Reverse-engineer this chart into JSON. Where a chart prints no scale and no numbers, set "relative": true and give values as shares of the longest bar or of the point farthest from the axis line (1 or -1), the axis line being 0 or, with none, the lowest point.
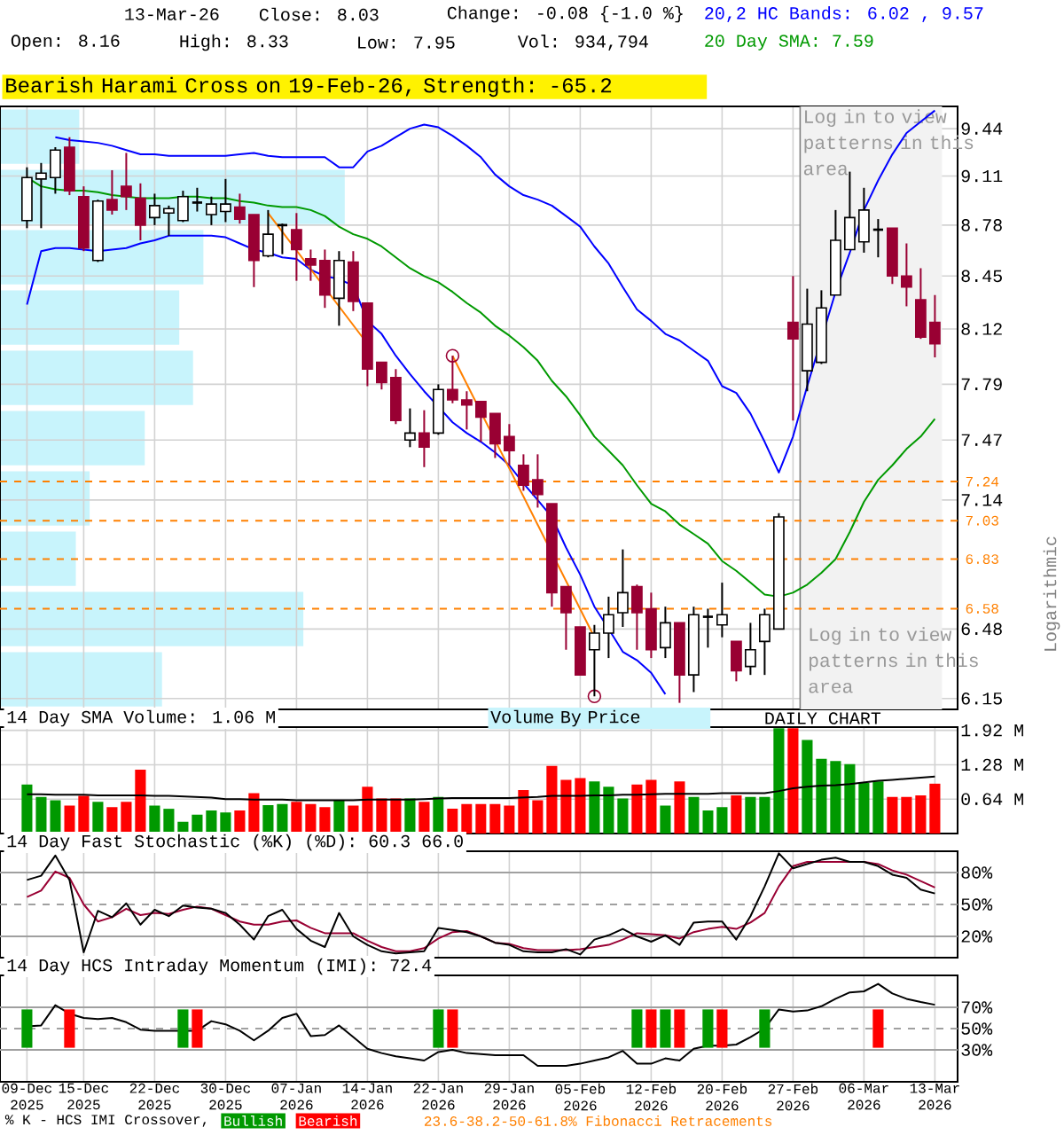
{
  "chart_data": [
    {
      "type": "bar",
      "orientation": "horizontal",
      "relative": true,
      "tick_labels": false,
      "color": "#c8f4fc",
      "categories": [
        null,
        null,
        null,
        null,
        null,
        null,
        null,
        null,
        null,
        null
      ],
      "values": [
        0.23,
        1,
        0.59,
        0.52,
        0.56,
        0.42,
        0.26,
        0.22,
        0.88,
        0.47
      ]
    },
    {
      "type": "candlestick",
      "categories": [
        "09-Dec 2025",
        null,
        null,
        null,
        "15-Dec 2025",
        null,
        null,
        null,
        null,
        "22-Dec 2025",
        null,
        null,
        null,
        null,
        "30-Dec 2025",
        null,
        null,
        null,
        null,
        "07-Jan 2026",
        null,
        null,
        null,
        null,
        "14-Jan 2026",
        null,
        null,
        null,
        null,
        "22-Jan 2026",
        null,
        null,
        null,
        null,
        "29-Jan 2026",
        null,
        null,
        null,
        null,
        "05-Feb 2026",
        null,
        null,
        null,
        null,
        "12-Feb 2026",
        null,
        null,
        null,
        null,
        "20-Feb 2026",
        null,
        null,
        null,
        null,
        "27-Feb 2026",
        null,
        null,
        null,
        null,
        "06-Mar 2026",
        null,
        null,
        null,
        null,
        "13-Mar 2026"
      ],
      "ohlc": [
        [
          8.81,
          9.17,
          8.76,
          9.1
        ],
        [
          9.09,
          9.2,
          8.76,
          9.13
        ],
        [
          9.1,
          9.31,
          8.99,
          9.29
        ],
        [
          9.31,
          9.38,
          8.98,
          9.01
        ],
        [
          8.97,
          9.04,
          8.61,
          8.63
        ],
        [
          8.55,
          8.95,
          8.54,
          8.94
        ],
        [
          8.95,
          9.15,
          8.85,
          8.88
        ],
        [
          9.04,
          9.27,
          8.88,
          8.97
        ],
        [
          8.96,
          9.06,
          8.68,
          8.78
        ],
        [
          8.83,
          8.99,
          8.78,
          8.91
        ],
        [
          8.86,
          8.91,
          8.71,
          8.89
        ],
        [
          8.81,
          9.01,
          8.8,
          8.97
        ],
        [
          8.93,
          9.03,
          8.87,
          8.93
        ],
        [
          8.85,
          8.97,
          8.78,
          8.92
        ],
        [
          8.87,
          9.09,
          8.8,
          8.92
        ],
        [
          8.9,
          8.99,
          8.79,
          8.82
        ],
        [
          8.85,
          8.85,
          8.38,
          8.55
        ],
        [
          8.58,
          8.88,
          8.57,
          8.72
        ],
        [
          8.78,
          8.79,
          8.59,
          8.78
        ],
        [
          8.75,
          8.86,
          8.42,
          8.62
        ],
        [
          8.56,
          8.62,
          8.42,
          8.52
        ],
        [
          8.55,
          8.62,
          8.25,
          8.33
        ],
        [
          8.31,
          8.61,
          8.14,
          8.55
        ],
        [
          8.54,
          8.61,
          8.23,
          8.29
        ],
        [
          8.28,
          8.28,
          7.78,
          7.88
        ],
        [
          7.92,
          7.92,
          7.76,
          7.8
        ],
        [
          7.83,
          7.88,
          7.56,
          7.58
        ],
        [
          7.47,
          7.65,
          7.43,
          7.51
        ],
        [
          7.51,
          7.64,
          7.32,
          7.43
        ],
        [
          7.51,
          7.79,
          7.5,
          7.76
        ],
        [
          7.76,
          7.96,
          7.68,
          7.7
        ],
        [
          7.7,
          7.75,
          7.53,
          7.67
        ],
        [
          7.69,
          7.69,
          7.46,
          7.6
        ],
        [
          7.62,
          7.62,
          7.37,
          7.45
        ],
        [
          7.49,
          7.56,
          7.33,
          7.41
        ],
        [
          7.33,
          7.39,
          7.19,
          7.22
        ],
        [
          7.25,
          7.39,
          7.1,
          7.17
        ],
        [
          7.12,
          7.12,
          6.59,
          6.66
        ],
        [
          6.69,
          6.69,
          6.38,
          6.56
        ],
        [
          6.49,
          6.49,
          6.26,
          6.26
        ],
        [
          6.38,
          6.5,
          6.16,
          6.46
        ],
        [
          6.46,
          6.64,
          6.34,
          6.55
        ],
        [
          6.56,
          6.88,
          6.49,
          6.66
        ],
        [
          6.69,
          6.7,
          6.38,
          6.56
        ],
        [
          6.58,
          6.66,
          6.34,
          6.38
        ],
        [
          6.39,
          6.59,
          6.34,
          6.51
        ],
        [
          6.51,
          6.51,
          6.13,
          6.26
        ],
        [
          6.26,
          6.59,
          6.18,
          6.55
        ],
        [
          6.54,
          6.58,
          6.39,
          6.54
        ],
        [
          6.5,
          6.71,
          6.44,
          6.55
        ],
        [
          6.42,
          6.42,
          6.23,
          6.28
        ],
        [
          6.3,
          6.51,
          6.26,
          6.38
        ],
        [
          6.42,
          6.58,
          6.26,
          6.55
        ],
        [
          6.48,
          7.07,
          6.48,
          7.05
        ],
        [
          8.16,
          8.45,
          7.58,
          8.06
        ],
        [
          7.87,
          8.37,
          7.75,
          8.15
        ],
        [
          7.92,
          8.36,
          7.91,
          8.25
        ],
        [
          8.33,
          8.88,
          8.33,
          8.68
        ],
        [
          8.62,
          9.14,
          8.62,
          8.83
        ],
        [
          8.67,
          9.03,
          8.6,
          8.88
        ],
        [
          8.75,
          8.82,
          8.57,
          8.75
        ],
        [
          8.76,
          8.76,
          8.4,
          8.45
        ],
        [
          8.45,
          8.66,
          8.26,
          8.38
        ],
        [
          8.3,
          8.5,
          8.06,
          8.07
        ],
        [
          8.16,
          8.33,
          7.95,
          8.03
        ]
      ],
      "colors": [
        "#ffffff",
        "#ffffff",
        "#ffffff",
        "#990033",
        "#990033",
        "#ffffff",
        "#990033",
        "#990033",
        "#990033",
        "#ffffff",
        "#ffffff",
        "#ffffff",
        "#000000",
        "#ffffff",
        "#ffffff",
        "#990033",
        "#990033",
        "#ffffff",
        "#000000",
        "#990033",
        "#990033",
        "#990033",
        "#ffffff",
        "#990033",
        "#990033",
        "#990033",
        "#990033",
        "#ffffff",
        "#990033",
        "#ffffff",
        "#990033",
        "#990033",
        "#990033",
        "#990033",
        "#990033",
        "#990033",
        "#990033",
        "#990033",
        "#990033",
        "#990033",
        "#ffffff",
        "#ffffff",
        "#ffffff",
        "#990033",
        "#990033",
        "#ffffff",
        "#990033",
        "#ffffff",
        "#000000",
        "#ffffff",
        "#990033",
        "#ffffff",
        "#ffffff",
        "#ffffff",
        "#990033",
        "#ffffff",
        "#ffffff",
        "#ffffff",
        "#ffffff",
        "#ffffff",
        "#000000",
        "#990033",
        "#990033",
        "#990033",
        "#990033"
      ],
      "series": [
        {
          "type": "line",
          "name": "20,2 HC Bands: 6.02 , 9.57",
          "color": "#0000ff",
          "values": [
            null,
            null,
            9.38,
            9.36,
            9.35,
            9.34,
            9.32,
            9.29,
            9.26,
            9.26,
            9.25,
            9.25,
            9.25,
            9.25,
            9.25,
            9.26,
            9.27,
            9.25,
            9.24,
            9.24,
            9.24,
            9.24,
            9.17,
            9.17,
            9.28,
            9.32,
            9.38,
            9.44,
            9.47,
            9.45,
            9.39,
            9.32,
            9.24,
            9.12,
            9.04,
            8.98,
            8.95,
            8.91,
            8.84,
            8.77,
            8.64,
            8.53,
            8.38,
            8.24,
            8.17,
            8.09,
            8.05,
            7.99,
            7.93,
            7.78,
            7.74,
            7.62,
            7.46,
            7.29,
            7.49,
            7.78,
            null,
            8.35,
            8.6,
            8.88,
            9.08,
            9.26,
            9.41,
            9.49,
            9.57
          ]
        },
        {
          "type": "line",
          "color": "#0000ff",
          "values": [
            8.27,
            8.61,
            8.63,
            8.63,
            8.62,
            8.61,
            8.62,
            8.63,
            8.66,
            8.68,
            8.71,
            8.71,
            8.71,
            8.71,
            8.7,
            8.66,
            8.62,
            8.6,
            8.57,
            8.56,
            8.49,
            8.45,
            8.43,
            8.39,
            8.17,
            8.09,
            7.96,
            7.85,
            7.75,
            7.66,
            7.57,
            7.51,
            7.46,
            7.4,
            7.33,
            7.23,
            7.14,
            7.05,
            6.89,
            6.75,
            6.59,
            6.48,
            6.37,
            6.33,
            6.27,
            6.17,
            null,
            null,
            null,
            null,
            null,
            null,
            null,
            null,
            null,
            null,
            null,
            null,
            null,
            null,
            null,
            null,
            null,
            null,
            null
          ]
        },
        {
          "type": "line",
          "name": "20 Day SMA: 7.59",
          "color": "#009900",
          "values": [
            9.1,
            9.04,
            9.02,
            9.01,
            9.01,
            9.0,
            8.98,
            8.97,
            8.96,
            8.96,
            8.96,
            8.97,
            8.97,
            8.96,
            8.96,
            8.94,
            8.93,
            8.91,
            8.9,
            8.9,
            8.88,
            8.84,
            8.77,
            8.72,
            8.69,
            8.64,
            8.57,
            8.5,
            8.45,
            8.41,
            8.35,
            8.28,
            8.22,
            8.14,
            8.08,
            8.01,
            7.93,
            7.81,
            7.72,
            7.61,
            7.49,
            7.41,
            7.33,
            7.22,
            7.12,
            7.08,
            7.01,
            6.96,
            6.91,
            6.82,
            6.77,
            6.71,
            6.65,
            6.64,
            6.66,
            6.7,
            6.76,
            6.83,
            6.97,
            7.13,
            7.25,
            7.33,
            7.42,
            7.49,
            7.59
          ]
        },
        {
          "type": "line",
          "color": "#ff8000",
          "values": [
            null,
            null,
            null,
            null,
            null,
            null,
            null,
            null,
            null,
            null,
            null,
            null,
            null,
            null,
            null,
            null,
            null,
            8.86,
            null,
            null,
            null,
            null,
            null,
            null,
            8.03,
            null,
            null,
            null,
            null,
            null,
            null,
            null,
            null,
            null,
            null,
            null,
            null,
            null,
            null,
            null,
            null,
            null,
            null,
            null,
            null,
            null,
            null,
            null,
            null,
            null,
            null,
            null,
            null,
            null,
            null,
            null,
            null,
            null,
            null,
            null,
            null,
            null,
            null,
            null,
            null
          ]
        },
        {
          "type": "line",
          "color": "#ff8000",
          "values": [
            null,
            null,
            null,
            null,
            null,
            null,
            null,
            null,
            null,
            null,
            null,
            null,
            null,
            null,
            null,
            null,
            null,
            null,
            null,
            null,
            null,
            null,
            null,
            null,
            null,
            null,
            null,
            null,
            null,
            null,
            7.96,
            null,
            null,
            null,
            null,
            null,
            null,
            null,
            null,
            null,
            6.44,
            null,
            null,
            null,
            null,
            null,
            null,
            null,
            null,
            null,
            null,
            null,
            null,
            null,
            null,
            null,
            null,
            null,
            null,
            null,
            null,
            null,
            null,
            null,
            null
          ]
        },
        {
          "type": "scatter",
          "color": "#990033",
          "marker": "circle",
          "values": [
            null,
            null,
            null,
            null,
            null,
            null,
            null,
            null,
            null,
            null,
            null,
            null,
            null,
            null,
            null,
            null,
            null,
            null,
            null,
            null,
            null,
            null,
            null,
            null,
            null,
            null,
            null,
            null,
            null,
            null,
            7.96,
            null,
            null,
            null,
            null,
            null,
            null,
            null,
            null,
            null,
            6.16,
            null,
            null,
            null,
            null,
            null,
            null,
            null,
            null,
            null,
            null,
            null,
            null,
            null,
            null,
            null,
            null,
            null,
            null,
            null,
            null,
            null,
            null,
            null,
            null
          ]
        }
      ],
      "ylim": [
        6.1,
        9.6
      ],
      "yticks": [
        6.15,
        6.48,
        7.14,
        7.47,
        7.79,
        8.12,
        8.45,
        8.78,
        9.11,
        9.44
      ],
      "log": true,
      "grid": true,
      "tick_labels": "y",
      "legend": "top right",
      "ylabel": "Logarithmic",
      "ref_lines": [
        {
          "axis": "y",
          "value": 7.24,
          "label": "7.24",
          "color": "#ff8000",
          "line_style": "dashed"
        },
        {
          "axis": "y",
          "value": 7.03,
          "label": "7.03",
          "color": "#ff8000",
          "line_style": "dashed"
        },
        {
          "axis": "y",
          "value": 6.83,
          "label": "6.83",
          "color": "#ff8000",
          "line_style": "dashed"
        },
        {
          "axis": "y",
          "value": 6.58,
          "label": "6.58",
          "color": "#ff8000",
          "line_style": "dashed"
        }
      ],
      "bands": [
        {
          "axis": "x",
          "from": "27-Feb 2026",
          "to": "13-Mar 2026",
          "label": "Log in to view patterns in this area",
          "color": "#f2f2f2"
        }
      ],
      "annotations": [
        "13-Mar-26",
        "Close: 8.03",
        "Change: -0.08 {-1.0 %}",
        "Open: 8.16",
        "High: 8.33",
        "Low: 7.95",
        "Vol: 934,794",
        "Bearish Harami Cross on 19-Feb-26, Strength: -65.2",
        "Log in to view patterns in this area",
        "23.6-38.2-50-61.8% Fibonacci Retracements"
      ]
    },
    {
      "type": "bar",
      "title": "14 Day SMA Volume: 1.06 M",
      "categories": [
        "09-Dec 2025",
        null,
        null,
        null,
        "15-Dec 2025",
        null,
        null,
        null,
        null,
        "22-Dec 2025",
        null,
        null,
        null,
        null,
        "30-Dec 2025",
        null,
        null,
        null,
        null,
        "07-Jan 2026",
        null,
        null,
        null,
        null,
        "14-Jan 2026",
        null,
        null,
        null,
        null,
        "22-Jan 2026",
        null,
        null,
        null,
        null,
        "29-Jan 2026",
        null,
        null,
        null,
        null,
        "05-Feb 2026",
        null,
        null,
        null,
        null,
        "12-Feb 2026",
        null,
        null,
        null,
        null,
        "20-Feb 2026",
        null,
        null,
        null,
        null,
        "27-Feb 2026",
        null,
        null,
        null,
        null,
        "06-Mar 2026",
        null,
        null,
        null,
        null,
        "13-Mar 2026"
      ],
      "series": [
        {
          "type": "bar",
          "values": [
            0.91,
            0.68,
            0.62,
            0.52,
            0.7,
            0.59,
            0.49,
            0.59,
            1.19,
            0.52,
            0.46,
            0.22,
            0.35,
            0.43,
            0.39,
            0.43,
            0.75,
            0.53,
            0.55,
            0.59,
            0.55,
            0.49,
            0.62,
            0.52,
            0.87,
            0.65,
            0.65,
            0.65,
            0.59,
            0.68,
            0.46,
            0.55,
            0.55,
            0.55,
            0.52,
            0.81,
            0.62,
            1.26,
            1.0,
            1.03,
            0.97,
            0.87,
            0.65,
            0.91,
            1.0,
            0.52,
            0.97,
            0.68,
            0.43,
            0.49,
            0.71,
            0.68,
            0.68,
            1.96,
            1.96,
            1.74,
            1.39,
            1.35,
            1.29,
            0.94,
            0.97,
            0.68,
            0.68,
            0.71,
            0.93
          ],
          "colors": [
            "#009900",
            "#009900",
            "#009900",
            "#ff0000",
            "#ff0000",
            "#009900",
            "#ff0000",
            "#ff0000",
            "#ff0000",
            "#009900",
            "#009900",
            "#009900",
            "#009900",
            "#009900",
            "#009900",
            "#ff0000",
            "#ff0000",
            "#009900",
            "#009900",
            "#ff0000",
            "#ff0000",
            "#ff0000",
            "#009900",
            "#ff0000",
            "#ff0000",
            "#ff0000",
            "#ff0000",
            "#009900",
            "#ff0000",
            "#009900",
            "#ff0000",
            "#ff0000",
            "#ff0000",
            "#ff0000",
            "#ff0000",
            "#ff0000",
            "#ff0000",
            "#ff0000",
            "#ff0000",
            "#ff0000",
            "#009900",
            "#009900",
            "#009900",
            "#ff0000",
            "#ff0000",
            "#009900",
            "#ff0000",
            "#009900",
            "#009900",
            "#009900",
            "#ff0000",
            "#009900",
            "#009900",
            "#009900",
            "#ff0000",
            "#009900",
            "#009900",
            "#009900",
            "#009900",
            "#009900",
            "#009900",
            "#ff0000",
            "#ff0000",
            "#ff0000",
            "#ff0000"
          ]
        },
        {
          "type": "line",
          "color": "#000000",
          "values": [
            0.73,
            0.73,
            0.72,
            0.72,
            0.72,
            0.71,
            0.71,
            0.71,
            0.71,
            0.7,
            0.7,
            0.69,
            0.68,
            0.67,
            0.64,
            0.64,
            0.63,
            0.63,
            0.63,
            0.62,
            0.62,
            0.62,
            0.62,
            0.62,
            0.63,
            0.63,
            0.63,
            0.63,
            0.64,
            0.65,
            0.66,
            0.66,
            0.66,
            0.66,
            0.66,
            0.67,
            0.68,
            0.7,
            0.7,
            0.7,
            0.71,
            0.71,
            0.72,
            0.72,
            0.73,
            0.74,
            0.74,
            0.74,
            0.74,
            0.75,
            0.75,
            0.75,
            0.75,
            0.79,
            0.84,
            0.87,
            0.89,
            0.9,
            0.92,
            0.95,
            0.98,
            1.0,
            1.02,
            1.04,
            1.06
          ]
        }
      ],
      "ylim": [
        0,
        1.98
      ],
      "yticks": [
        {
          "value": 0.64,
          "label": "0.64 M"
        },
        {
          "value": 1.28,
          "label": "1.28 M"
        },
        {
          "value": 1.92,
          "label": "1.92 M"
        }
      ],
      "grid": true,
      "tick_labels": "y",
      "annotations": [
        "Volume By Price",
        "DAILY CHART"
      ]
    },
    {
      "type": "line",
      "title": "14 Day Fast Stochastic (%K) (%D): 60.3 66.0",
      "categories": [
        "09-Dec 2025",
        null,
        null,
        null,
        "15-Dec 2025",
        null,
        null,
        null,
        null,
        "22-Dec 2025",
        null,
        null,
        null,
        null,
        "30-Dec 2025",
        null,
        null,
        null,
        null,
        "07-Jan 2026",
        null,
        null,
        null,
        null,
        "14-Jan 2026",
        null,
        null,
        null,
        null,
        "22-Jan 2026",
        null,
        null,
        null,
        null,
        "29-Jan 2026",
        null,
        null,
        null,
        null,
        "05-Feb 2026",
        null,
        null,
        null,
        null,
        "12-Feb 2026",
        null,
        null,
        null,
        null,
        "20-Feb 2026",
        null,
        null,
        null,
        null,
        "27-Feb 2026",
        null,
        null,
        null,
        null,
        "06-Mar 2026",
        null,
        null,
        null,
        null,
        "13-Mar 2026"
      ],
      "series": [
        {
          "color": "#990033",
          "values": [
            57,
            63,
            81,
            75,
            50,
            34,
            38,
            46,
            40,
            42,
            41,
            45,
            48,
            46,
            40,
            34,
            31,
            31,
            34,
            35,
            28,
            23,
            23,
            23,
            16,
            10,
            6,
            6,
            9,
            18,
            24,
            25,
            20,
            14,
            13,
            9,
            7,
            7,
            7,
            8,
            10,
            12,
            17,
            23,
            22,
            21,
            18,
            24,
            27,
            29,
            27,
            33,
            42,
            67,
            86,
            90,
            90,
            90,
            90,
            90,
            88,
            82,
            78,
            72,
            66.0
          ]
        },
        {
          "color": "#000000",
          "values": [
            73,
            77,
            96,
            73,
            5,
            44,
            38,
            51,
            31,
            45,
            39,
            49,
            47,
            46,
            42,
            31,
            17,
            39,
            45,
            27,
            16,
            10,
            42,
            20,
            12,
            6,
            4,
            5,
            6,
            28,
            26,
            24,
            20,
            14,
            12,
            6,
            5,
            5,
            8,
            3,
            17,
            21,
            27,
            20,
            15,
            21,
            12,
            33,
            34,
            34,
            17,
            39,
            67,
            98,
            84,
            88,
            92,
            94,
            90,
            90,
            86,
            78,
            75,
            64,
            60.3
          ]
        }
      ],
      "ylim": [
        0,
        100
      ],
      "yticks": [
        {
          "value": 20,
          "label": "20%"
        },
        {
          "value": 50,
          "label": "50%"
        },
        {
          "value": 80,
          "label": "80%"
        }
      ],
      "grid": "x",
      "tick_labels": "y",
      "ref_lines": [
        {
          "axis": "y",
          "value": 20,
          "color": "#a0a0a0",
          "line_style": "solid"
        },
        {
          "axis": "y",
          "value": 50,
          "color": "#a0a0a0",
          "line_style": "dashed"
        },
        {
          "axis": "y",
          "value": 80,
          "color": "#a0a0a0",
          "line_style": "solid"
        }
      ]
    },
    {
      "type": "line",
      "title": "14 Day HCS Intraday Momentum (IMI): 72.4",
      "legend": "bottom",
      "legend_title": "% K - HCS IMI Crossover,",
      "categories": [
        "09-Dec 2025",
        null,
        null,
        null,
        "15-Dec 2025",
        null,
        null,
        null,
        null,
        "22-Dec 2025",
        null,
        null,
        null,
        null,
        "30-Dec 2025",
        null,
        null,
        null,
        null,
        "07-Jan 2026",
        null,
        null,
        null,
        null,
        "14-Jan 2026",
        null,
        null,
        null,
        null,
        "22-Jan 2026",
        null,
        null,
        null,
        null,
        "29-Jan 2026",
        null,
        null,
        null,
        null,
        "05-Feb 2026",
        null,
        null,
        null,
        null,
        "12-Feb 2026",
        null,
        null,
        null,
        null,
        "20-Feb 2026",
        null,
        null,
        null,
        null,
        "27-Feb 2026",
        null,
        null,
        null,
        null,
        "06-Mar 2026",
        null,
        null,
        null,
        null,
        "13-Mar 2026"
      ],
      "series": [
        {
          "type": "line",
          "color": "#000000",
          "values": [
            52,
            53,
            72,
            64,
            60,
            59,
            60,
            56,
            49,
            48,
            48,
            48,
            48,
            57,
            54,
            48,
            39,
            48,
            60,
            64,
            43,
            44,
            53,
            42,
            31,
            27,
            24,
            22,
            20,
            28,
            30,
            27,
            26,
            25,
            25,
            25,
            15,
            15,
            15,
            17,
            20,
            23,
            29,
            17,
            17,
            22,
            20,
            31,
            34,
            34,
            35,
            42,
            50,
            68,
            66,
            67,
            71,
            78,
            84,
            85,
            92,
            83,
            78,
            75,
            72.4
          ]
        },
        {
          "type": "bar",
          "name": "Bullish",
          "color": "#009900",
          "values": [
            36,
            null,
            null,
            null,
            null,
            null,
            null,
            null,
            null,
            null,
            null,
            36,
            null,
            null,
            null,
            null,
            null,
            null,
            null,
            null,
            null,
            null,
            null,
            null,
            null,
            null,
            null,
            null,
            null,
            36,
            null,
            null,
            null,
            null,
            null,
            null,
            null,
            null,
            null,
            null,
            null,
            null,
            null,
            36,
            null,
            36,
            null,
            null,
            36,
            null,
            null,
            null,
            36,
            null,
            null,
            null,
            null,
            null,
            null,
            null,
            null,
            null,
            null,
            null,
            null
          ],
          "base": [
            32,
            null,
            null,
            null,
            null,
            null,
            null,
            null,
            null,
            null,
            null,
            32,
            null,
            null,
            null,
            null,
            null,
            null,
            null,
            null,
            null,
            null,
            null,
            null,
            null,
            null,
            null,
            null,
            null,
            32,
            null,
            null,
            null,
            null,
            null,
            null,
            null,
            null,
            null,
            null,
            null,
            null,
            null,
            32,
            null,
            32,
            null,
            null,
            32,
            null,
            null,
            null,
            32,
            null,
            null,
            null,
            null,
            null,
            null,
            null,
            null,
            null,
            null,
            null,
            null
          ]
        },
        {
          "type": "bar",
          "name": "Bearish",
          "color": "#ff0000",
          "values": [
            null,
            null,
            null,
            36,
            null,
            null,
            null,
            null,
            null,
            null,
            null,
            null,
            36,
            null,
            null,
            null,
            null,
            null,
            null,
            null,
            null,
            null,
            null,
            null,
            null,
            null,
            null,
            null,
            null,
            null,
            36,
            null,
            null,
            null,
            null,
            null,
            null,
            null,
            null,
            null,
            null,
            null,
            null,
            null,
            36,
            null,
            36,
            null,
            null,
            36,
            null,
            null,
            null,
            null,
            null,
            null,
            null,
            null,
            null,
            null,
            36,
            null,
            null,
            null,
            null
          ],
          "base": [
            null,
            null,
            null,
            32,
            null,
            null,
            null,
            null,
            null,
            null,
            null,
            null,
            32,
            null,
            null,
            null,
            null,
            null,
            null,
            null,
            null,
            null,
            null,
            null,
            null,
            null,
            null,
            null,
            null,
            null,
            32,
            null,
            null,
            null,
            null,
            null,
            null,
            null,
            null,
            null,
            null,
            null,
            null,
            null,
            32,
            null,
            32,
            null,
            null,
            32,
            null,
            null,
            null,
            null,
            null,
            null,
            null,
            null,
            null,
            null,
            32,
            null,
            null,
            null,
            null
          ]
        }
      ],
      "ylim": [
        0,
        100
      ],
      "yticks": [
        {
          "value": 30,
          "label": "30%"
        },
        {
          "value": 50,
          "label": "50%"
        },
        {
          "value": 70,
          "label": "70%"
        }
      ],
      "grid": "x",
      "ref_lines": [
        {
          "axis": "y",
          "value": 30,
          "color": "#a0a0a0",
          "line_style": "solid"
        },
        {
          "axis": "y",
          "value": 50,
          "color": "#a0a0a0",
          "line_style": "dashed"
        },
        {
          "axis": "y",
          "value": 70,
          "color": "#a0a0a0",
          "line_style": "solid"
        }
      ]
    }
  ]
}
